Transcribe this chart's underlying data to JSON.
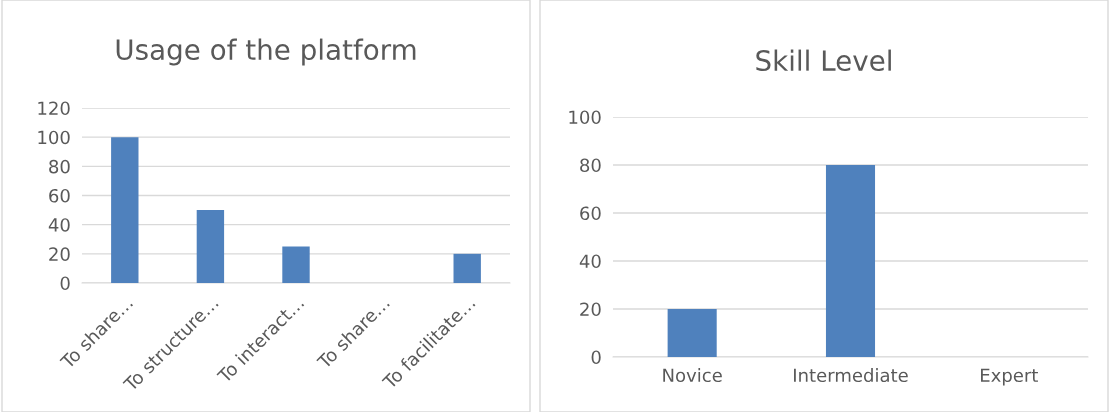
{
  "chart_data": [
    {
      "type": "bar",
      "title": "Usage of the platform",
      "categories": [
        "To share…",
        "To structure…",
        "To interact…",
        "To share…",
        "To facilitate…"
      ],
      "values": [
        100,
        50,
        25,
        0,
        20
      ],
      "color": "#4f81bd",
      "ylim": [
        0,
        120
      ],
      "yticks": [
        0,
        20,
        40,
        60,
        80,
        100,
        120
      ],
      "grid": "y",
      "legend": false
    },
    {
      "type": "bar",
      "title": "Skill Level",
      "categories": [
        "Novice",
        "Intermediate",
        "Expert"
      ],
      "values": [
        20,
        80,
        0
      ],
      "color": "#4f81bd",
      "ylim": [
        0,
        100
      ],
      "yticks": [
        0,
        20,
        40,
        60,
        80,
        100
      ],
      "grid": "y",
      "legend": false
    }
  ]
}
